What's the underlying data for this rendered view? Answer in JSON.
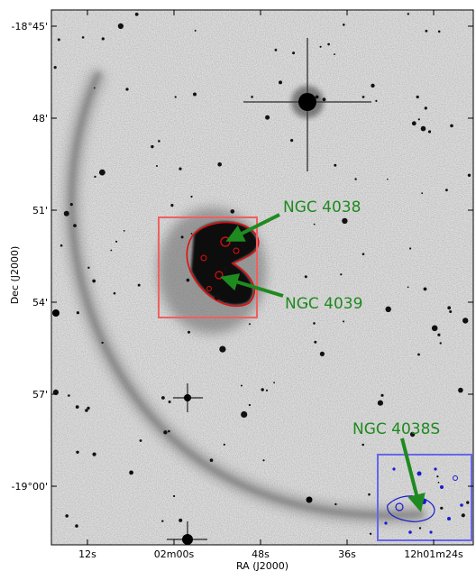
{
  "figure": {
    "x_axis_label": "RA (J2000)",
    "y_axis_label": "Dec (J2000)",
    "x_ticks": [
      "12s",
      "02m00s",
      "48s",
      "36s",
      "12h01m24s"
    ],
    "y_ticks": [
      "-18°45'",
      "48'",
      "51'",
      "54'",
      "57'",
      "-19°00'"
    ],
    "annotations": [
      {
        "id": "ngc4038",
        "text": "NGC 4038",
        "color": "#1f8a1f"
      },
      {
        "id": "ngc4039",
        "text": "NGC 4039",
        "color": "#1f8a1f"
      },
      {
        "id": "ngc4038s",
        "text": "NGC 4038S",
        "color": "#1f8a1f"
      }
    ],
    "region_boxes": [
      {
        "name": "main-merger-box",
        "color": "#f06060"
      },
      {
        "name": "tidal-dwarf-box",
        "color": "#6666ee"
      }
    ],
    "contour_colors": {
      "main": "#e01010",
      "dwarf": "#1a1ad0"
    }
  }
}
